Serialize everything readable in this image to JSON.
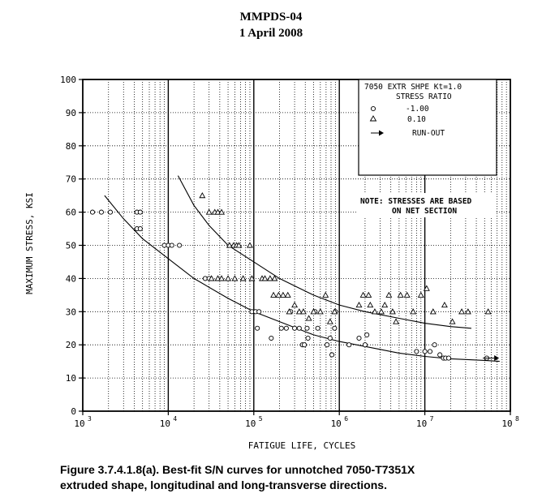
{
  "header": {
    "line1": "MMPDS-04",
    "line2": "1 April 2008"
  },
  "caption": {
    "line1": "Figure 3.7.4.1.8(a).  Best-fit S/N curves for unnotched 7050-T7351X",
    "line2": "extruded shape, longitudinal and long-transverse directions."
  },
  "chart_data": {
    "type": "scatter",
    "xlabel": "FATIGUE LIFE, CYCLES",
    "ylabel": "MAXIMUM STRESS, KSI",
    "xscale": "log",
    "xlim": [
      1000,
      100000000
    ],
    "ylim": [
      0,
      100
    ],
    "x_ticks": [
      {
        "value": 1000,
        "label": "3"
      },
      {
        "value": 10000,
        "label": "4"
      },
      {
        "value": 100000,
        "label": "5"
      },
      {
        "value": 1000000,
        "label": "6"
      },
      {
        "value": 10000000,
        "label": "7"
      },
      {
        "value": 100000000,
        "label": "8"
      }
    ],
    "x_tick_base": "10",
    "y_ticks": [
      0,
      10,
      20,
      30,
      40,
      50,
      60,
      70,
      80,
      90,
      100
    ],
    "grid": true,
    "legend": {
      "placement": "top-right",
      "title": "7050 EXTR SHPE Kt=1.0",
      "subtitle": "STRESS RATIO",
      "entries": [
        {
          "marker": "circle",
          "label": "-1.00"
        },
        {
          "marker": "triangle",
          "label": "0.10"
        },
        {
          "marker": "arrow",
          "label": "RUN-OUT"
        }
      ]
    },
    "note": {
      "line1": "NOTE: STRESSES ARE BASED",
      "line2": "ON NET SECTION"
    },
    "series": [
      {
        "name": "-1.00",
        "marker": "circle",
        "points": [
          [
            1300,
            60
          ],
          [
            1650,
            60
          ],
          [
            2100,
            60
          ],
          [
            4300,
            60
          ],
          [
            4700,
            60
          ],
          [
            4300,
            55
          ],
          [
            4700,
            55
          ],
          [
            9000,
            50
          ],
          [
            10000,
            50
          ],
          [
            11000,
            50
          ],
          [
            13500,
            50
          ],
          [
            27000,
            40
          ],
          [
            30000,
            40
          ],
          [
            95000,
            30
          ],
          [
            105000,
            30
          ],
          [
            115000,
            30
          ],
          [
            110000,
            25
          ],
          [
            160000,
            22
          ],
          [
            210000,
            25
          ],
          [
            240000,
            25
          ],
          [
            270000,
            30
          ],
          [
            300000,
            25
          ],
          [
            340000,
            25
          ],
          [
            370000,
            20
          ],
          [
            390000,
            20
          ],
          [
            420000,
            25
          ],
          [
            430000,
            22
          ],
          [
            520000,
            30
          ],
          [
            560000,
            25
          ],
          [
            720000,
            20
          ],
          [
            780000,
            22
          ],
          [
            820000,
            17
          ],
          [
            880000,
            25
          ],
          [
            900000,
            30
          ],
          [
            1300000,
            20
          ],
          [
            1700000,
            22
          ],
          [
            2000000,
            20
          ],
          [
            2100000,
            23
          ],
          [
            8000000,
            18
          ],
          [
            10000000,
            18
          ],
          [
            11500000,
            18
          ],
          [
            13000000,
            20
          ],
          [
            15000000,
            17
          ],
          [
            16500000,
            16
          ],
          [
            17500000,
            16
          ],
          [
            19000000,
            16
          ],
          [
            53000000,
            16
          ]
        ]
      },
      {
        "name": "0.10",
        "marker": "triangle",
        "points": [
          [
            25000,
            65
          ],
          [
            30000,
            60
          ],
          [
            35000,
            60
          ],
          [
            38000,
            60
          ],
          [
            42000,
            60
          ],
          [
            52000,
            50
          ],
          [
            58000,
            50
          ],
          [
            63000,
            50
          ],
          [
            67000,
            50
          ],
          [
            90000,
            50
          ],
          [
            32000,
            40
          ],
          [
            38000,
            40
          ],
          [
            42000,
            40
          ],
          [
            50000,
            40
          ],
          [
            60000,
            40
          ],
          [
            75000,
            40
          ],
          [
            95000,
            40
          ],
          [
            125000,
            40
          ],
          [
            135000,
            40
          ],
          [
            155000,
            40
          ],
          [
            175000,
            40
          ],
          [
            170000,
            35
          ],
          [
            195000,
            35
          ],
          [
            220000,
            35
          ],
          [
            250000,
            35
          ],
          [
            260000,
            30
          ],
          [
            300000,
            32
          ],
          [
            340000,
            30
          ],
          [
            380000,
            30
          ],
          [
            440000,
            28
          ],
          [
            500000,
            30
          ],
          [
            600000,
            30
          ],
          [
            690000,
            35
          ],
          [
            780000,
            27
          ],
          [
            880000,
            30
          ],
          [
            1700000,
            32
          ],
          [
            1900000,
            35
          ],
          [
            2200000,
            35
          ],
          [
            2300000,
            32
          ],
          [
            2600000,
            30
          ],
          [
            3100000,
            30
          ],
          [
            3400000,
            32
          ],
          [
            3800000,
            35
          ],
          [
            4200000,
            30
          ],
          [
            4600000,
            27
          ],
          [
            5200000,
            35
          ],
          [
            6200000,
            35
          ],
          [
            7300000,
            30
          ],
          [
            9000000,
            35
          ],
          [
            10500000,
            37
          ],
          [
            12500000,
            30
          ],
          [
            17000000,
            32
          ],
          [
            21000000,
            27
          ],
          [
            27000000,
            30
          ],
          [
            32000000,
            30
          ],
          [
            55000000,
            30
          ]
        ]
      },
      {
        "name": "RUN-OUT",
        "marker": "arrow",
        "points": [
          [
            62000000,
            16
          ]
        ]
      }
    ],
    "curves": [
      {
        "stress_ratio": "-1.00",
        "points": [
          [
            1800,
            65
          ],
          [
            3000,
            58
          ],
          [
            5000,
            52
          ],
          [
            10000,
            46
          ],
          [
            20000,
            40
          ],
          [
            50000,
            34
          ],
          [
            100000,
            30
          ],
          [
            200000,
            27
          ],
          [
            500000,
            23
          ],
          [
            1000000,
            21
          ],
          [
            2000000,
            19.5
          ],
          [
            5000000,
            17.5
          ],
          [
            10000000,
            16.5
          ],
          [
            20000000,
            15.8
          ],
          [
            50000000,
            15.3
          ],
          [
            75000000,
            15
          ]
        ]
      },
      {
        "stress_ratio": "0.10",
        "points": [
          [
            13000,
            71
          ],
          [
            20000,
            62
          ],
          [
            30000,
            56
          ],
          [
            50000,
            50
          ],
          [
            100000,
            45
          ],
          [
            200000,
            40
          ],
          [
            500000,
            35
          ],
          [
            1000000,
            32
          ],
          [
            2000000,
            30
          ],
          [
            5000000,
            28
          ],
          [
            10000000,
            26.5
          ],
          [
            20000000,
            25.5
          ],
          [
            35000000,
            25
          ]
        ]
      }
    ]
  }
}
